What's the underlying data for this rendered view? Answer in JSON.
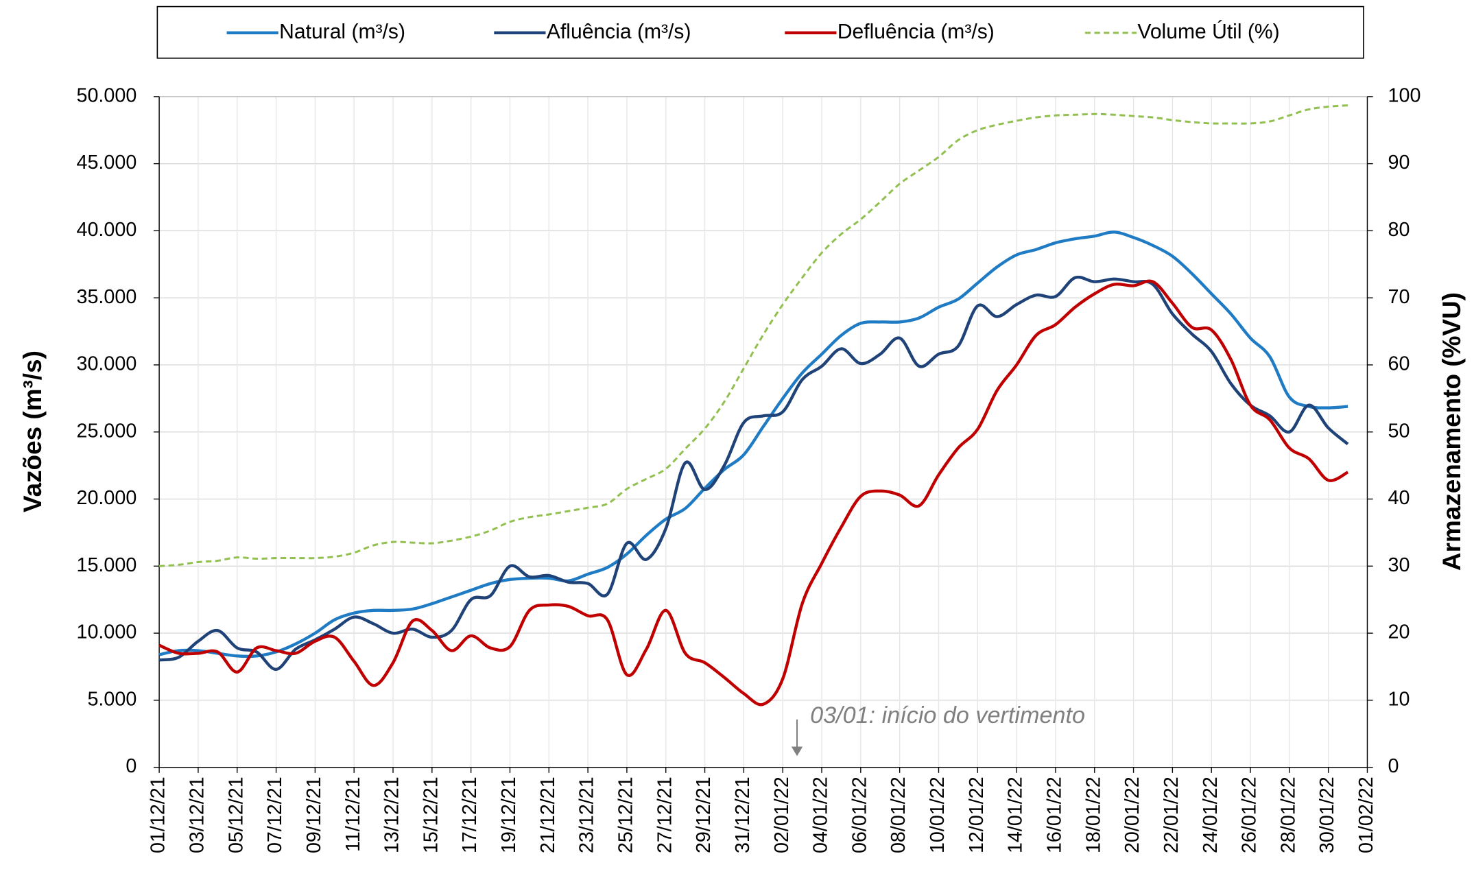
{
  "chart_data": {
    "type": "line",
    "x": [
      "01/12/21",
      "02/12/21",
      "03/12/21",
      "04/12/21",
      "05/12/21",
      "06/12/21",
      "07/12/21",
      "08/12/21",
      "09/12/21",
      "10/12/21",
      "11/12/21",
      "12/12/21",
      "13/12/21",
      "14/12/21",
      "15/12/21",
      "16/12/21",
      "17/12/21",
      "18/12/21",
      "19/12/21",
      "20/12/21",
      "21/12/21",
      "22/12/21",
      "23/12/21",
      "24/12/21",
      "25/12/21",
      "26/12/21",
      "27/12/21",
      "28/12/21",
      "29/12/21",
      "30/12/21",
      "31/12/21",
      "01/01/22",
      "02/01/22",
      "03/01/22",
      "04/01/22",
      "05/01/22",
      "06/01/22",
      "07/01/22",
      "08/01/22",
      "09/01/22",
      "10/01/22",
      "11/01/22",
      "12/01/22",
      "13/01/22",
      "14/01/22",
      "15/01/22",
      "16/01/22",
      "17/01/22",
      "18/01/22",
      "19/01/22",
      "20/01/22",
      "21/01/22",
      "22/01/22",
      "23/01/22",
      "24/01/22",
      "25/01/22",
      "26/01/22",
      "27/01/22",
      "28/01/22",
      "29/01/22",
      "30/01/22",
      "31/01/22"
    ],
    "xlim": [
      "01/12/21",
      "01/02/22"
    ],
    "xticks": [
      "01/12/21",
      "03/12/21",
      "05/12/21",
      "07/12/21",
      "09/12/21",
      "11/12/21",
      "13/12/21",
      "15/12/21",
      "17/12/21",
      "19/12/21",
      "21/12/21",
      "23/12/21",
      "25/12/21",
      "27/12/21",
      "29/12/21",
      "31/12/21",
      "02/01/22",
      "04/01/22",
      "06/01/22",
      "08/01/22",
      "10/01/22",
      "12/01/22",
      "14/01/22",
      "16/01/22",
      "18/01/22",
      "20/01/22",
      "22/01/22",
      "24/01/22",
      "26/01/22",
      "28/01/22",
      "30/01/22",
      "01/02/22"
    ],
    "y_label": "Vazões (m³/s)",
    "y2_label": "Armazenamento (%VU)",
    "ylim": [
      0,
      50000
    ],
    "yticks": [
      0,
      {
        "value": 5000,
        "label": "5.000"
      },
      {
        "value": 10000,
        "label": "10.000"
      },
      {
        "value": 15000,
        "label": "15.000"
      },
      {
        "value": 20000,
        "label": "20.000"
      },
      {
        "value": 25000,
        "label": "25.000"
      },
      {
        "value": 30000,
        "label": "30.000"
      },
      {
        "value": 35000,
        "label": "35.000"
      },
      {
        "value": 40000,
        "label": "40.000"
      },
      {
        "value": 45000,
        "label": "45.000"
      },
      {
        "value": 50000,
        "label": "50.000"
      }
    ],
    "y2lim": [
      0,
      100
    ],
    "y2ticks": [
      0,
      10,
      20,
      30,
      40,
      50,
      60,
      70,
      80,
      90,
      100
    ],
    "grid": true,
    "legend": "top",
    "annotation": "03/01: início do vertimento",
    "series": [
      {
        "name": "Natural (m³/s)",
        "color": "#1f7bc4",
        "values": [
          8400,
          8700,
          8700,
          8500,
          8300,
          8300,
          8600,
          9200,
          10000,
          11000,
          11500,
          11700,
          11700,
          11800,
          12200,
          12700,
          13200,
          13700,
          14000,
          14100,
          14100,
          13900,
          14400,
          14900,
          15900,
          17300,
          18500,
          19300,
          20800,
          22200,
          23300,
          25400,
          27500,
          29400,
          30800,
          32200,
          33100,
          33200,
          33200,
          33500,
          34300,
          34900,
          36100,
          37300,
          38200,
          38600,
          39100,
          39400,
          39600,
          39900,
          39500,
          38900,
          38100,
          36800,
          35300,
          33800,
          32000,
          30600,
          27600,
          26900,
          26800,
          26900
        ]
      },
      {
        "name": "Afluência (m³/s)",
        "color": "#1f4378",
        "values": [
          8000,
          8200,
          9400,
          10200,
          8900,
          8600,
          7300,
          8800,
          9500,
          10300,
          11200,
          10700,
          10000,
          10300,
          9700,
          10200,
          12500,
          12800,
          15000,
          14200,
          14300,
          13800,
          13700,
          12900,
          16700,
          15500,
          17800,
          22700,
          20700,
          22500,
          25700,
          26200,
          26500,
          28900,
          29900,
          31200,
          30100,
          30800,
          32000,
          29900,
          30800,
          31400,
          34400,
          33600,
          34500,
          35200,
          35100,
          36500,
          36200,
          36400,
          36200,
          36000,
          33800,
          32300,
          31000,
          28600,
          27000,
          26200,
          25000,
          27000,
          25300,
          24100
        ]
      },
      {
        "name": "Defluência (m³/s)",
        "color": "#c00000",
        "values": [
          9100,
          8500,
          8500,
          8600,
          7100,
          8900,
          8700,
          8500,
          9400,
          9700,
          7900,
          6100,
          7800,
          10900,
          10200,
          8700,
          9800,
          8900,
          9000,
          11700,
          12100,
          12000,
          11300,
          11000,
          6900,
          8800,
          11700,
          8500,
          7800,
          6700,
          5500,
          4700,
          6600,
          12200,
          15200,
          17900,
          20200,
          20600,
          20300,
          19500,
          21800,
          23800,
          25200,
          28100,
          30000,
          32200,
          33000,
          34300,
          35300,
          36000,
          35900,
          36200,
          34600,
          32800,
          32600,
          30400,
          27000,
          25900,
          23800,
          23000,
          21400,
          22000
        ]
      },
      {
        "name": "Volume Útil (%)",
        "color": "#92c050",
        "axis": "y2",
        "linestyle": "dashed",
        "values": [
          30,
          30.2,
          30.6,
          30.8,
          31.3,
          31.1,
          31.2,
          31.2,
          31.2,
          31.4,
          32,
          33.1,
          33.6,
          33.5,
          33.4,
          33.8,
          34.4,
          35.3,
          36.6,
          37.3,
          37.7,
          38.2,
          38.7,
          39.3,
          41.5,
          43,
          44.5,
          47.5,
          50.5,
          54.5,
          59.5,
          64.5,
          69,
          73,
          76.7,
          79.5,
          81.7,
          84.3,
          87,
          89,
          91,
          93.5,
          95,
          95.8,
          96.4,
          96.9,
          97.2,
          97.3,
          97.4,
          97.3,
          97.1,
          96.9,
          96.5,
          96.2,
          96,
          96,
          96,
          96.3,
          97.2,
          98.1,
          98.5,
          98.7
        ]
      }
    ]
  }
}
